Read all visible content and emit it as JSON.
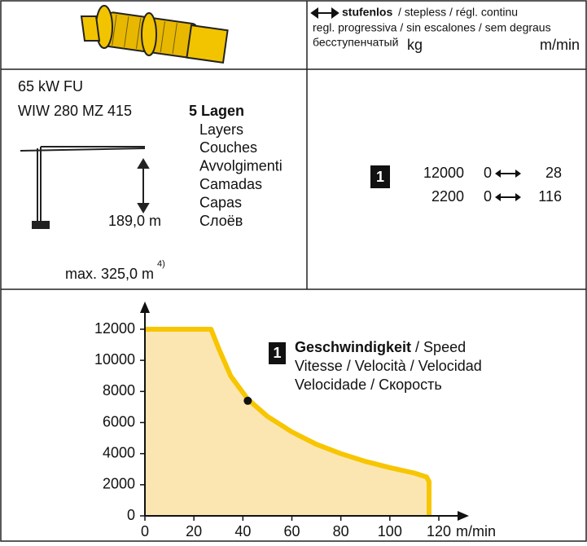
{
  "header": {
    "stepless_bold": "stufenlos",
    "stepless_rest": "/ stepless / régl. continu",
    "line2": "regl. progressiva / sin escalones / sem degraus",
    "line3": "бесступенчатый",
    "unit_load": "kg",
    "unit_speed": "m/min"
  },
  "spec": {
    "power": "65 kW FU",
    "model": "WIW 280 MZ 415",
    "layers_title": "5 Lagen",
    "layers": [
      "Layers",
      "Couches",
      "Avvolgimenti",
      "Camadas",
      "Capas",
      "Слоёв"
    ],
    "height": "189,0 m",
    "max": "max. 325,0 m",
    "max_note": "4)"
  },
  "speeds": {
    "badge": "1",
    "rows": [
      {
        "load": 12000,
        "from": 0,
        "to": 28
      },
      {
        "load": 2200,
        "from": 0,
        "to": 116
      }
    ]
  },
  "chart_data": {
    "type": "area",
    "x": [
      0,
      27,
      30,
      35,
      42,
      50,
      60,
      70,
      80,
      90,
      100,
      110,
      115,
      116,
      116
    ],
    "values": [
      12000,
      12000,
      10800,
      9000,
      7500,
      6400,
      5400,
      4600,
      4000,
      3500,
      3100,
      2750,
      2500,
      2200,
      0
    ],
    "xlim": [
      0,
      120
    ],
    "ylim": [
      0,
      12000
    ],
    "xticks": [
      0,
      20,
      40,
      60,
      80,
      100,
      120
    ],
    "yticks": [
      0,
      2000,
      4000,
      6000,
      8000,
      10000,
      12000
    ],
    "x_label": "m/min",
    "color": "#f7c600",
    "fill": "#fbe6b2",
    "marker": {
      "x": 42,
      "y": 7400
    },
    "annotation": {
      "badge": "1",
      "bold": "Geschwindigkeit",
      "rest": "/ Speed",
      "line2": "Vitesse / Velocità / Velocidad",
      "line3": "Velocidade / Скорость"
    }
  }
}
